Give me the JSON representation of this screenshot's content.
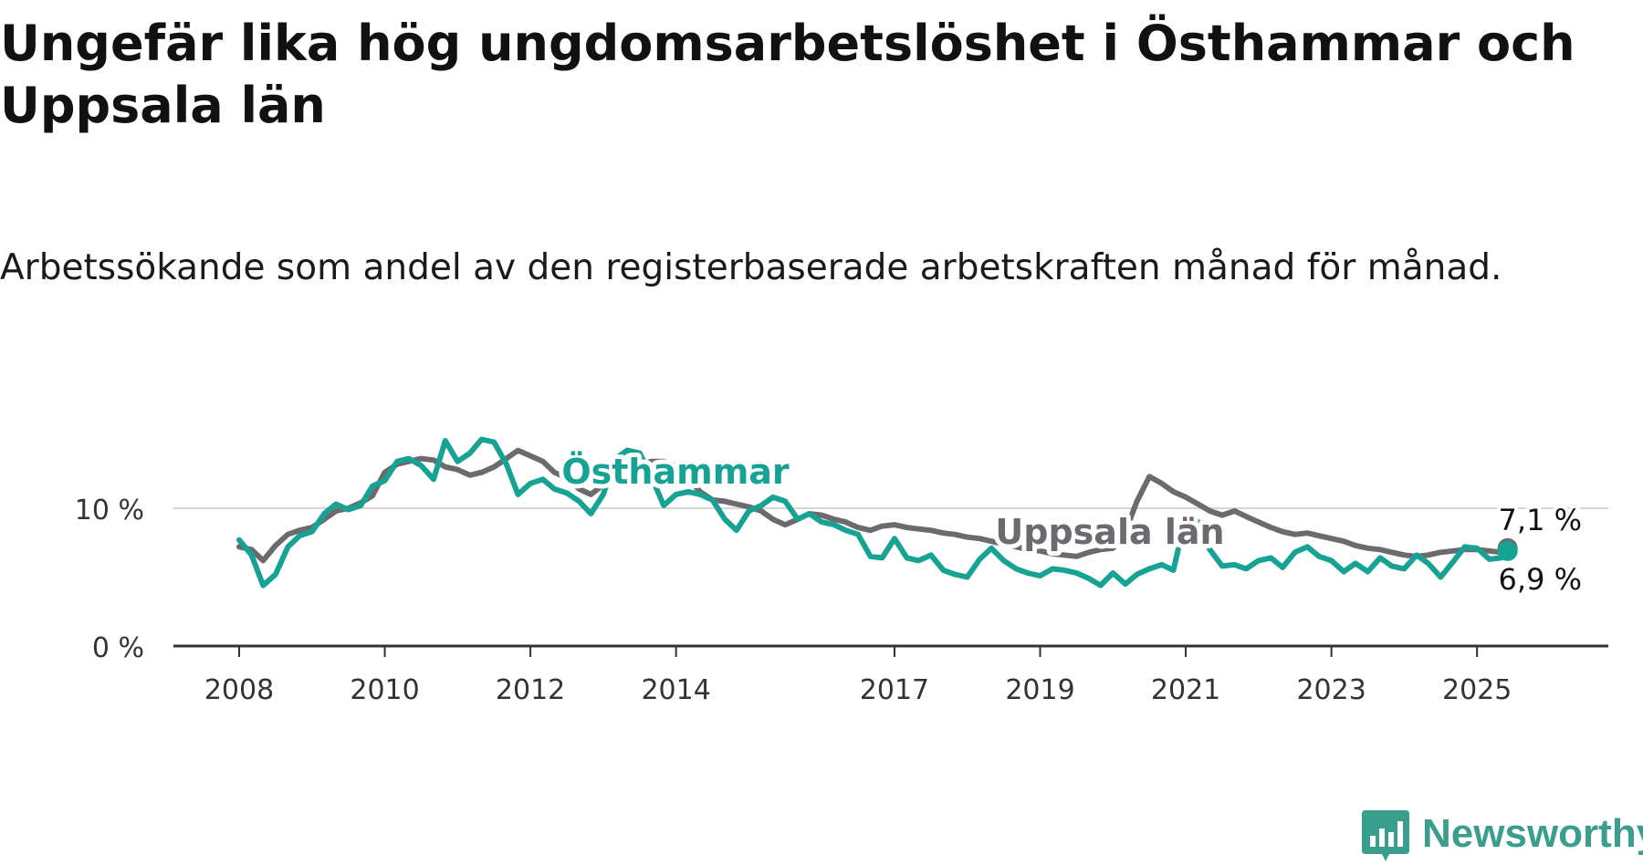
{
  "title": "Ungefär lika hög ungdomsarbetslöshet i Östhammar och Uppsala län",
  "subtitle": "Arbetssökande som andel av den registerbaserade arbetskraften månad för månad.",
  "brand": {
    "name": "Newsworthy",
    "icon": "newsworthy-logo-icon",
    "color": "#3a9e8c"
  },
  "chart_data": {
    "type": "line",
    "ylim": [
      0,
      15
    ],
    "xlim": [
      2008,
      2025.75
    ],
    "y_ticks": [
      {
        "v": 0,
        "label": "0 %"
      },
      {
        "v": 10,
        "label": "10 %"
      }
    ],
    "x_ticks": [
      {
        "v": 2008,
        "label": "2008"
      },
      {
        "v": 2010,
        "label": "2010"
      },
      {
        "v": 2012,
        "label": "2012"
      },
      {
        "v": 2014,
        "label": "2014"
      },
      {
        "v": 2017,
        "label": "2017"
      },
      {
        "v": 2019,
        "label": "2019"
      },
      {
        "v": 2021,
        "label": "2021"
      },
      {
        "v": 2023,
        "label": "2023"
      },
      {
        "v": 2025,
        "label": "2025"
      }
    ],
    "grid": "horizontal",
    "series": [
      {
        "name": "Uppsala län",
        "color": "#6d6a6f",
        "end_label": "7,1 %",
        "points": [
          [
            2008.0,
            7.2
          ],
          [
            2008.17,
            7.0
          ],
          [
            2008.33,
            6.2
          ],
          [
            2008.5,
            7.3
          ],
          [
            2008.67,
            8.1
          ],
          [
            2008.83,
            8.4
          ],
          [
            2009.0,
            8.6
          ],
          [
            2009.17,
            9.2
          ],
          [
            2009.33,
            9.8
          ],
          [
            2009.5,
            10.0
          ],
          [
            2009.67,
            10.4
          ],
          [
            2009.83,
            10.9
          ],
          [
            2010.0,
            12.6
          ],
          [
            2010.17,
            13.2
          ],
          [
            2010.33,
            13.4
          ],
          [
            2010.5,
            13.6
          ],
          [
            2010.67,
            13.5
          ],
          [
            2010.83,
            13.0
          ],
          [
            2011.0,
            12.8
          ],
          [
            2011.17,
            12.4
          ],
          [
            2011.33,
            12.6
          ],
          [
            2011.5,
            13.0
          ],
          [
            2011.67,
            13.6
          ],
          [
            2011.83,
            14.2
          ],
          [
            2012.0,
            13.8
          ],
          [
            2012.17,
            13.4
          ],
          [
            2012.33,
            12.6
          ],
          [
            2012.5,
            12.2
          ],
          [
            2012.67,
            11.4
          ],
          [
            2012.83,
            11.0
          ],
          [
            2013.0,
            11.7
          ],
          [
            2013.17,
            12.4
          ],
          [
            2013.33,
            12.8
          ],
          [
            2013.5,
            13.2
          ],
          [
            2013.67,
            13.4
          ],
          [
            2013.83,
            13.4
          ],
          [
            2014.0,
            13.1
          ],
          [
            2014.17,
            12.2
          ],
          [
            2014.33,
            11.2
          ],
          [
            2014.5,
            10.6
          ],
          [
            2014.67,
            10.5
          ],
          [
            2014.83,
            10.3
          ],
          [
            2015.0,
            10.1
          ],
          [
            2015.17,
            9.8
          ],
          [
            2015.33,
            9.2
          ],
          [
            2015.5,
            8.8
          ],
          [
            2015.67,
            9.2
          ],
          [
            2015.83,
            9.6
          ],
          [
            2016.0,
            9.5
          ],
          [
            2016.17,
            9.2
          ],
          [
            2016.33,
            9.0
          ],
          [
            2016.5,
            8.6
          ],
          [
            2016.67,
            8.4
          ],
          [
            2016.83,
            8.7
          ],
          [
            2017.0,
            8.8
          ],
          [
            2017.17,
            8.6
          ],
          [
            2017.33,
            8.5
          ],
          [
            2017.5,
            8.4
          ],
          [
            2017.67,
            8.2
          ],
          [
            2017.83,
            8.1
          ],
          [
            2018.0,
            7.9
          ],
          [
            2018.17,
            7.8
          ],
          [
            2018.33,
            7.6
          ],
          [
            2018.5,
            7.4
          ],
          [
            2018.67,
            7.2
          ],
          [
            2018.83,
            7.0
          ],
          [
            2019.0,
            6.9
          ],
          [
            2019.17,
            6.7
          ],
          [
            2019.33,
            6.6
          ],
          [
            2019.5,
            6.5
          ],
          [
            2019.67,
            6.8
          ],
          [
            2019.83,
            7.0
          ],
          [
            2020.0,
            7.1
          ],
          [
            2020.17,
            8.3
          ],
          [
            2020.33,
            10.5
          ],
          [
            2020.5,
            12.3
          ],
          [
            2020.67,
            11.8
          ],
          [
            2020.83,
            11.2
          ],
          [
            2021.0,
            10.8
          ],
          [
            2021.17,
            10.3
          ],
          [
            2021.33,
            9.8
          ],
          [
            2021.5,
            9.5
          ],
          [
            2021.67,
            9.8
          ],
          [
            2021.83,
            9.4
          ],
          [
            2022.0,
            9.0
          ],
          [
            2022.17,
            8.6
          ],
          [
            2022.33,
            8.3
          ],
          [
            2022.5,
            8.1
          ],
          [
            2022.67,
            8.2
          ],
          [
            2022.83,
            8.0
          ],
          [
            2023.0,
            7.8
          ],
          [
            2023.17,
            7.6
          ],
          [
            2023.33,
            7.3
          ],
          [
            2023.5,
            7.1
          ],
          [
            2023.67,
            7.0
          ],
          [
            2023.83,
            6.8
          ],
          [
            2024.0,
            6.6
          ],
          [
            2024.17,
            6.5
          ],
          [
            2024.33,
            6.6
          ],
          [
            2024.5,
            6.8
          ],
          [
            2024.67,
            6.9
          ],
          [
            2024.83,
            7.0
          ],
          [
            2025.0,
            7.0
          ],
          [
            2025.17,
            6.9
          ],
          [
            2025.33,
            6.8
          ],
          [
            2025.42,
            7.1
          ]
        ]
      },
      {
        "name": "Östhammar",
        "color": "#17a394",
        "end_label": "6,9 %",
        "points": [
          [
            2008.0,
            7.7
          ],
          [
            2008.17,
            6.6
          ],
          [
            2008.33,
            4.4
          ],
          [
            2008.5,
            5.2
          ],
          [
            2008.67,
            7.2
          ],
          [
            2008.83,
            8.0
          ],
          [
            2009.0,
            8.3
          ],
          [
            2009.17,
            9.6
          ],
          [
            2009.33,
            10.3
          ],
          [
            2009.5,
            9.9
          ],
          [
            2009.67,
            10.2
          ],
          [
            2009.83,
            11.6
          ],
          [
            2010.0,
            12.0
          ],
          [
            2010.17,
            13.4
          ],
          [
            2010.33,
            13.6
          ],
          [
            2010.5,
            13.1
          ],
          [
            2010.67,
            12.1
          ],
          [
            2010.83,
            14.9
          ],
          [
            2011.0,
            13.4
          ],
          [
            2011.17,
            14.0
          ],
          [
            2011.33,
            15.0
          ],
          [
            2011.5,
            14.8
          ],
          [
            2011.67,
            13.2
          ],
          [
            2011.83,
            11.0
          ],
          [
            2012.0,
            11.8
          ],
          [
            2012.17,
            12.1
          ],
          [
            2012.33,
            11.4
          ],
          [
            2012.5,
            11.1
          ],
          [
            2012.67,
            10.5
          ],
          [
            2012.83,
            9.6
          ],
          [
            2013.0,
            11.0
          ],
          [
            2013.17,
            13.6
          ],
          [
            2013.33,
            14.2
          ],
          [
            2013.5,
            14.0
          ],
          [
            2013.67,
            12.2
          ],
          [
            2013.83,
            10.2
          ],
          [
            2014.0,
            11.0
          ],
          [
            2014.17,
            11.2
          ],
          [
            2014.33,
            11.0
          ],
          [
            2014.5,
            10.6
          ],
          [
            2014.67,
            9.2
          ],
          [
            2014.83,
            8.4
          ],
          [
            2015.0,
            9.8
          ],
          [
            2015.17,
            10.2
          ],
          [
            2015.33,
            10.8
          ],
          [
            2015.5,
            10.5
          ],
          [
            2015.67,
            9.2
          ],
          [
            2015.83,
            9.6
          ],
          [
            2016.0,
            9.0
          ],
          [
            2016.17,
            8.8
          ],
          [
            2016.33,
            8.4
          ],
          [
            2016.5,
            8.1
          ],
          [
            2016.67,
            6.5
          ],
          [
            2016.83,
            6.4
          ],
          [
            2017.0,
            7.8
          ],
          [
            2017.17,
            6.4
          ],
          [
            2017.33,
            6.2
          ],
          [
            2017.5,
            6.6
          ],
          [
            2017.67,
            5.5
          ],
          [
            2017.83,
            5.2
          ],
          [
            2018.0,
            5.0
          ],
          [
            2018.17,
            6.3
          ],
          [
            2018.33,
            7.1
          ],
          [
            2018.5,
            6.2
          ],
          [
            2018.67,
            5.6
          ],
          [
            2018.83,
            5.3
          ],
          [
            2019.0,
            5.1
          ],
          [
            2019.17,
            5.6
          ],
          [
            2019.33,
            5.5
          ],
          [
            2019.5,
            5.3
          ],
          [
            2019.67,
            4.9
          ],
          [
            2019.83,
            4.4
          ],
          [
            2020.0,
            5.3
          ],
          [
            2020.17,
            4.5
          ],
          [
            2020.33,
            5.2
          ],
          [
            2020.5,
            5.6
          ],
          [
            2020.67,
            5.9
          ],
          [
            2020.83,
            5.5
          ],
          [
            2021.0,
            9.4
          ],
          [
            2021.17,
            9.0
          ],
          [
            2021.33,
            7.0
          ],
          [
            2021.5,
            5.8
          ],
          [
            2021.67,
            5.9
          ],
          [
            2021.83,
            5.6
          ],
          [
            2022.0,
            6.2
          ],
          [
            2022.17,
            6.4
          ],
          [
            2022.33,
            5.7
          ],
          [
            2022.5,
            6.8
          ],
          [
            2022.67,
            7.2
          ],
          [
            2022.83,
            6.5
          ],
          [
            2023.0,
            6.2
          ],
          [
            2023.17,
            5.4
          ],
          [
            2023.33,
            6.0
          ],
          [
            2023.5,
            5.4
          ],
          [
            2023.67,
            6.4
          ],
          [
            2023.83,
            5.8
          ],
          [
            2024.0,
            5.6
          ],
          [
            2024.17,
            6.6
          ],
          [
            2024.33,
            6.0
          ],
          [
            2024.5,
            5.0
          ],
          [
            2024.67,
            6.1
          ],
          [
            2024.83,
            7.2
          ],
          [
            2025.0,
            7.1
          ],
          [
            2025.17,
            6.3
          ],
          [
            2025.33,
            6.4
          ],
          [
            2025.42,
            6.9
          ]
        ]
      }
    ]
  }
}
